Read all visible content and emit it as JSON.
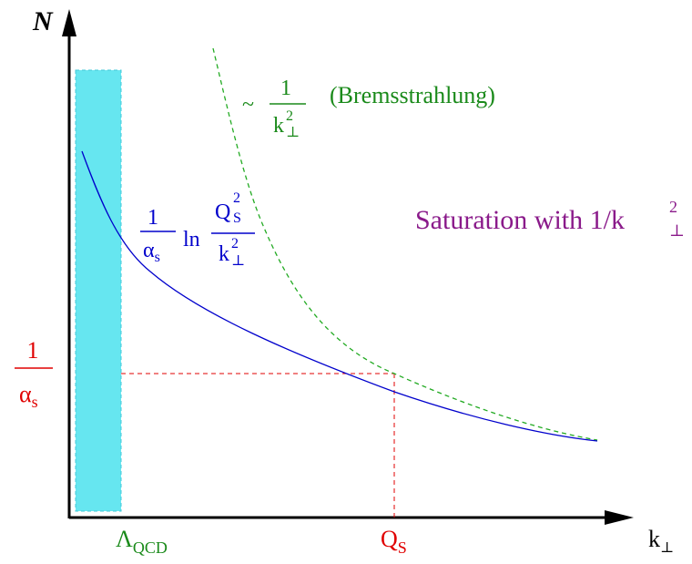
{
  "axes": {
    "y_label": "N",
    "x_label_main": "k",
    "x_label_sub": "⊥"
  },
  "labels": {
    "lambda_main": "Λ",
    "lambda_sub": "QCD",
    "qs_main": "Q",
    "qs_sub": "S",
    "one_over_alpha_num": "1",
    "one_over_alpha_den_main": "α",
    "one_over_alpha_den_sub": "s"
  },
  "annotations": {
    "brems_tilde": "~",
    "brems_num": "1",
    "brems_den_main": "k",
    "brems_den_sup": "2",
    "brems_den_sub": "⊥",
    "brems_text": "(Bremsstrahlung)",
    "sat_text": "Saturation with 1/k",
    "sat_sup": "2",
    "sat_sub": "⊥",
    "blue_num": "1",
    "blue_den_main": "α",
    "blue_den_sub": "s",
    "blue_ln": "ln",
    "blue_inner_num_main": "Q",
    "blue_inner_num_sup": "2",
    "blue_inner_num_sub": "S",
    "blue_inner_den_main": "k",
    "blue_inner_den_sup": "2",
    "blue_inner_den_sub": "⊥"
  },
  "colors": {
    "axis": "#000000",
    "band_fill": "#66e6f0",
    "band_stroke": "#40c8d8",
    "blue_curve": "#0000cc",
    "green_curve": "#22aa22",
    "red": "#e00000",
    "purple": "#8a1a8a",
    "green_text": "#1a8a1a"
  }
}
